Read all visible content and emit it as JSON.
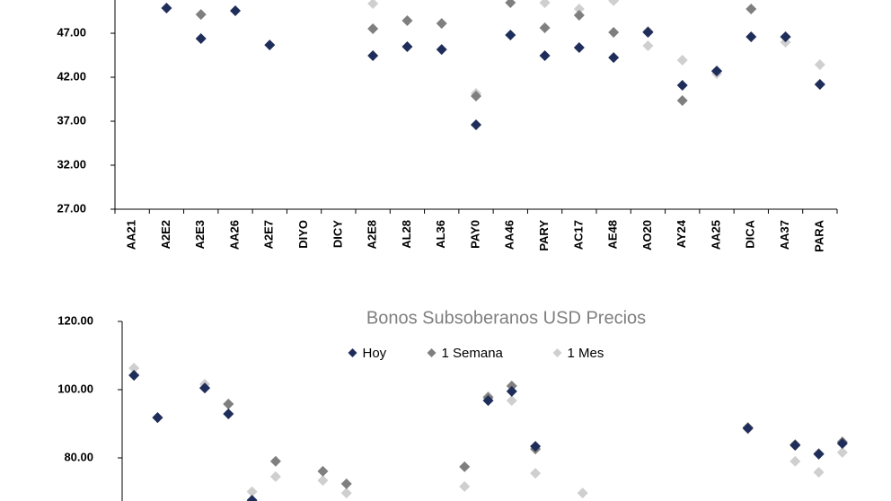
{
  "chart_data": [
    {
      "type": "scatter",
      "categories": [
        "AA21",
        "A2E2",
        "A2E3",
        "AA26",
        "A2E7",
        "DIYO",
        "DICY",
        "A2E8",
        "AL28",
        "AL36",
        "PAY0",
        "AA46",
        "PARY",
        "AC17",
        "AE48",
        "AO20",
        "AY24",
        "AA25",
        "DICA",
        "AA37",
        "PARA"
      ],
      "series": [
        {
          "color": "#1f2d5a",
          "values": [
            null,
            49.86,
            46.39,
            49.55,
            45.67,
            null,
            null,
            44.45,
            45.47,
            45.16,
            36.59,
            46.8,
            44.45,
            45.37,
            44.24,
            47.1,
            41.08,
            42.7,
            46.59,
            46.6,
            41.18
          ]
        },
        {
          "color": "#7f7f7f",
          "values": [
            null,
            null,
            49.14,
            null,
            null,
            null,
            null,
            47.51,
            48.43,
            48.12,
            39.86,
            50.47,
            47.61,
            49.04,
            47.1,
            47.2,
            39.35,
            42.71,
            49.76,
            46.6,
            41.18
          ]
        },
        {
          "color": "#cfcfcf",
          "values": [
            null,
            null,
            null,
            null,
            null,
            null,
            null,
            50.37,
            null,
            null,
            40.16,
            null,
            50.47,
            49.76,
            50.7,
            45.57,
            43.94,
            42.41,
            null,
            45.98,
            43.43
          ]
        }
      ],
      "ylim": [
        27,
        50.78
      ],
      "yticks": [
        {
          "value": 27,
          "label": "27.00"
        },
        {
          "value": 32,
          "label": "32.00"
        },
        {
          "value": 37,
          "label": "37.00"
        },
        {
          "value": 42,
          "label": "42.00"
        },
        {
          "value": 47,
          "label": "47.00"
        }
      ],
      "grid": false
    },
    {
      "type": "scatter",
      "title": "Bonos Subsoberanos USD Precios",
      "legend": "top",
      "categories": [
        null,
        null,
        null,
        null,
        null,
        null,
        null,
        null,
        null,
        null,
        null,
        null,
        null,
        null,
        null,
        null,
        null,
        null,
        null,
        null,
        null,
        null,
        null,
        null,
        null,
        null,
        null,
        null,
        null,
        null,
        null
      ],
      "series": [
        {
          "name": "Hoy",
          "color": "#1f2d5a",
          "values": [
            104.2,
            91.8,
            null,
            100.5,
            92.9,
            67.6,
            null,
            null,
            null,
            null,
            null,
            null,
            null,
            null,
            null,
            96.8,
            99.5,
            83.4,
            null,
            null,
            null,
            null,
            null,
            null,
            null,
            null,
            88.7,
            null,
            83.7,
            81.1,
            84.2
          ]
        },
        {
          "name": "1 Semana",
          "color": "#7f7f7f",
          "values": [
            104.2,
            91.8,
            null,
            100.5,
            95.8,
            null,
            79.0,
            null,
            76.1,
            72.4,
            null,
            null,
            null,
            null,
            77.4,
            97.7,
            101.1,
            82.6,
            null,
            null,
            null,
            null,
            null,
            null,
            null,
            null,
            88.9,
            null,
            83.9,
            81.3,
            84.7
          ]
        },
        {
          "name": "1 Mes",
          "color": "#cfcfcf",
          "values": [
            106.3,
            91.8,
            null,
            101.6,
            95.8,
            70.1,
            74.5,
            null,
            73.4,
            69.7,
            null,
            null,
            null,
            null,
            71.6,
            98.0,
            96.8,
            75.5,
            null,
            69.7,
            null,
            null,
            null,
            null,
            null,
            null,
            88.5,
            null,
            79.0,
            75.8,
            81.6
          ]
        }
      ],
      "ylim": [
        67.37,
        120
      ],
      "yticks": [
        {
          "value": 80,
          "label": "80.00"
        },
        {
          "value": 100,
          "label": "100.00"
        },
        {
          "value": 120,
          "label": "120.00"
        }
      ],
      "grid": false
    }
  ]
}
